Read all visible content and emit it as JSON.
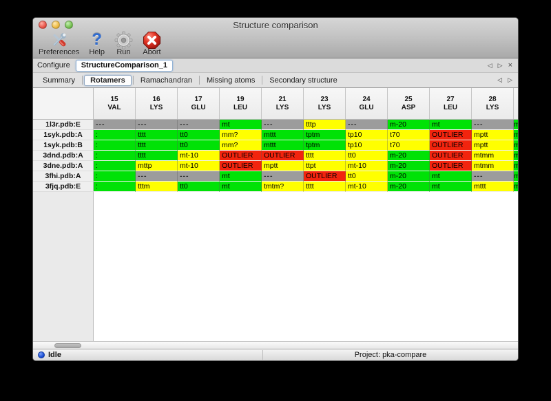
{
  "window": {
    "title": "Structure comparison"
  },
  "toolbar": {
    "buttons": [
      {
        "label": "Preferences",
        "icon": "tools-icon"
      },
      {
        "label": "Help",
        "icon": "question-icon",
        "glyph": "?"
      },
      {
        "label": "Run",
        "icon": "gear-icon"
      },
      {
        "label": "Abort",
        "icon": "stop-x-icon"
      }
    ]
  },
  "configure": {
    "label": "Configure",
    "value": "StructureComparison_1",
    "prev": "◁",
    "next": "▷",
    "close": "×"
  },
  "tabs": {
    "items": [
      {
        "label": "Summary",
        "selected": false
      },
      {
        "label": "Rotamers",
        "selected": true
      },
      {
        "label": "Ramachandran",
        "selected": false
      },
      {
        "label": "Missing atoms",
        "selected": false
      },
      {
        "label": "Secondary structure",
        "selected": false
      }
    ],
    "prev": "◁",
    "next": "▷"
  },
  "colors": {
    "green": "#00e206",
    "yellow": "#ffff00",
    "red": "#f2240e",
    "gray": "#9c9c9c"
  },
  "table": {
    "columns": [
      {
        "num": "15",
        "res": "VAL"
      },
      {
        "num": "16",
        "res": "LYS"
      },
      {
        "num": "17",
        "res": "GLU"
      },
      {
        "num": "19",
        "res": "LEU"
      },
      {
        "num": "21",
        "res": "LYS"
      },
      {
        "num": "23",
        "res": "LYS"
      },
      {
        "num": "24",
        "res": "GLU"
      },
      {
        "num": "25",
        "res": "ASP"
      },
      {
        "num": "27",
        "res": "LEU"
      },
      {
        "num": "28",
        "res": "LYS"
      }
    ],
    "rows": [
      {
        "label": "1l3r.pdb:E",
        "cells": [
          {
            "t": "---",
            "c": "gray"
          },
          {
            "t": "---",
            "c": "gray"
          },
          {
            "t": "---",
            "c": "gray"
          },
          {
            "t": "mt",
            "c": "green"
          },
          {
            "t": "---",
            "c": "gray"
          },
          {
            "t": "tttp",
            "c": "yellow"
          },
          {
            "t": "---",
            "c": "gray"
          },
          {
            "t": "m-20",
            "c": "green"
          },
          {
            "t": "mt",
            "c": "green"
          },
          {
            "t": "---",
            "c": "gray"
          }
        ],
        "clip": {
          "t": "m",
          "c": "green"
        }
      },
      {
        "label": "1syk.pdb:A",
        "cells": [
          {
            "t": ":",
            "c": "green"
          },
          {
            "t": "tttt",
            "c": "green"
          },
          {
            "t": "tt0",
            "c": "green"
          },
          {
            "t": "mm?",
            "c": "yellow"
          },
          {
            "t": "mttt",
            "c": "green"
          },
          {
            "t": "tptm",
            "c": "green"
          },
          {
            "t": "tp10",
            "c": "yellow"
          },
          {
            "t": "t70",
            "c": "yellow"
          },
          {
            "t": "OUTLIER",
            "c": "red"
          },
          {
            "t": "mptt",
            "c": "yellow"
          }
        ],
        "clip": {
          "t": "m",
          "c": "green"
        }
      },
      {
        "label": "1syk.pdb:B",
        "cells": [
          {
            "t": ":",
            "c": "green"
          },
          {
            "t": "tttt",
            "c": "green"
          },
          {
            "t": "tt0",
            "c": "green"
          },
          {
            "t": "mm?",
            "c": "yellow"
          },
          {
            "t": "mttt",
            "c": "green"
          },
          {
            "t": "tptm",
            "c": "green"
          },
          {
            "t": "tp10",
            "c": "yellow"
          },
          {
            "t": "t70",
            "c": "yellow"
          },
          {
            "t": "OUTLIER",
            "c": "red"
          },
          {
            "t": "mptt",
            "c": "yellow"
          }
        ],
        "clip": {
          "t": "m",
          "c": "green"
        }
      },
      {
        "label": "3dnd.pdb:A",
        "cells": [
          {
            "t": ":",
            "c": "green"
          },
          {
            "t": "tttt",
            "c": "green"
          },
          {
            "t": "mt-10",
            "c": "yellow"
          },
          {
            "t": "OUTLIER",
            "c": "red"
          },
          {
            "t": "OUTLIER",
            "c": "red"
          },
          {
            "t": "tttt",
            "c": "yellow"
          },
          {
            "t": "tt0",
            "c": "yellow"
          },
          {
            "t": "m-20",
            "c": "green"
          },
          {
            "t": "OUTLIER",
            "c": "red"
          },
          {
            "t": "mtmm",
            "c": "yellow"
          }
        ],
        "clip": {
          "t": "m",
          "c": "green"
        }
      },
      {
        "label": "3dne.pdb:A",
        "cells": [
          {
            "t": ":",
            "c": "green"
          },
          {
            "t": "mttp",
            "c": "yellow"
          },
          {
            "t": "mt-10",
            "c": "yellow"
          },
          {
            "t": "OUTLIER",
            "c": "red"
          },
          {
            "t": "mptt",
            "c": "yellow"
          },
          {
            "t": "ttpt",
            "c": "yellow"
          },
          {
            "t": "mt-10",
            "c": "yellow"
          },
          {
            "t": "m-20",
            "c": "green"
          },
          {
            "t": "OUTLIER",
            "c": "red"
          },
          {
            "t": "mtmm",
            "c": "yellow"
          }
        ],
        "clip": {
          "t": "m",
          "c": "green"
        }
      },
      {
        "label": "3fhi.pdb:A",
        "cells": [
          {
            "t": ":",
            "c": "green"
          },
          {
            "t": "---",
            "c": "gray"
          },
          {
            "t": "---",
            "c": "gray"
          },
          {
            "t": "mt",
            "c": "green"
          },
          {
            "t": "---",
            "c": "gray"
          },
          {
            "t": "OUTLIER",
            "c": "red"
          },
          {
            "t": "tt0",
            "c": "yellow"
          },
          {
            "t": "m-20",
            "c": "green"
          },
          {
            "t": "mt",
            "c": "green"
          },
          {
            "t": "---",
            "c": "gray"
          }
        ],
        "clip": {
          "t": "m",
          "c": "green"
        }
      },
      {
        "label": "3fjq.pdb:E",
        "cells": [
          {
            "t": ":",
            "c": "green"
          },
          {
            "t": "tttm",
            "c": "yellow"
          },
          {
            "t": "tt0",
            "c": "green"
          },
          {
            "t": "mt",
            "c": "green"
          },
          {
            "t": "tmtm?",
            "c": "yellow"
          },
          {
            "t": "tttt",
            "c": "yellow"
          },
          {
            "t": "mt-10",
            "c": "yellow"
          },
          {
            "t": "m-20",
            "c": "green"
          },
          {
            "t": "mt",
            "c": "green"
          },
          {
            "t": "mttt",
            "c": "yellow"
          }
        ],
        "clip": {
          "t": "m",
          "c": "green"
        }
      }
    ]
  },
  "statusbar": {
    "status": "Idle",
    "project": "Project: pka-compare"
  }
}
